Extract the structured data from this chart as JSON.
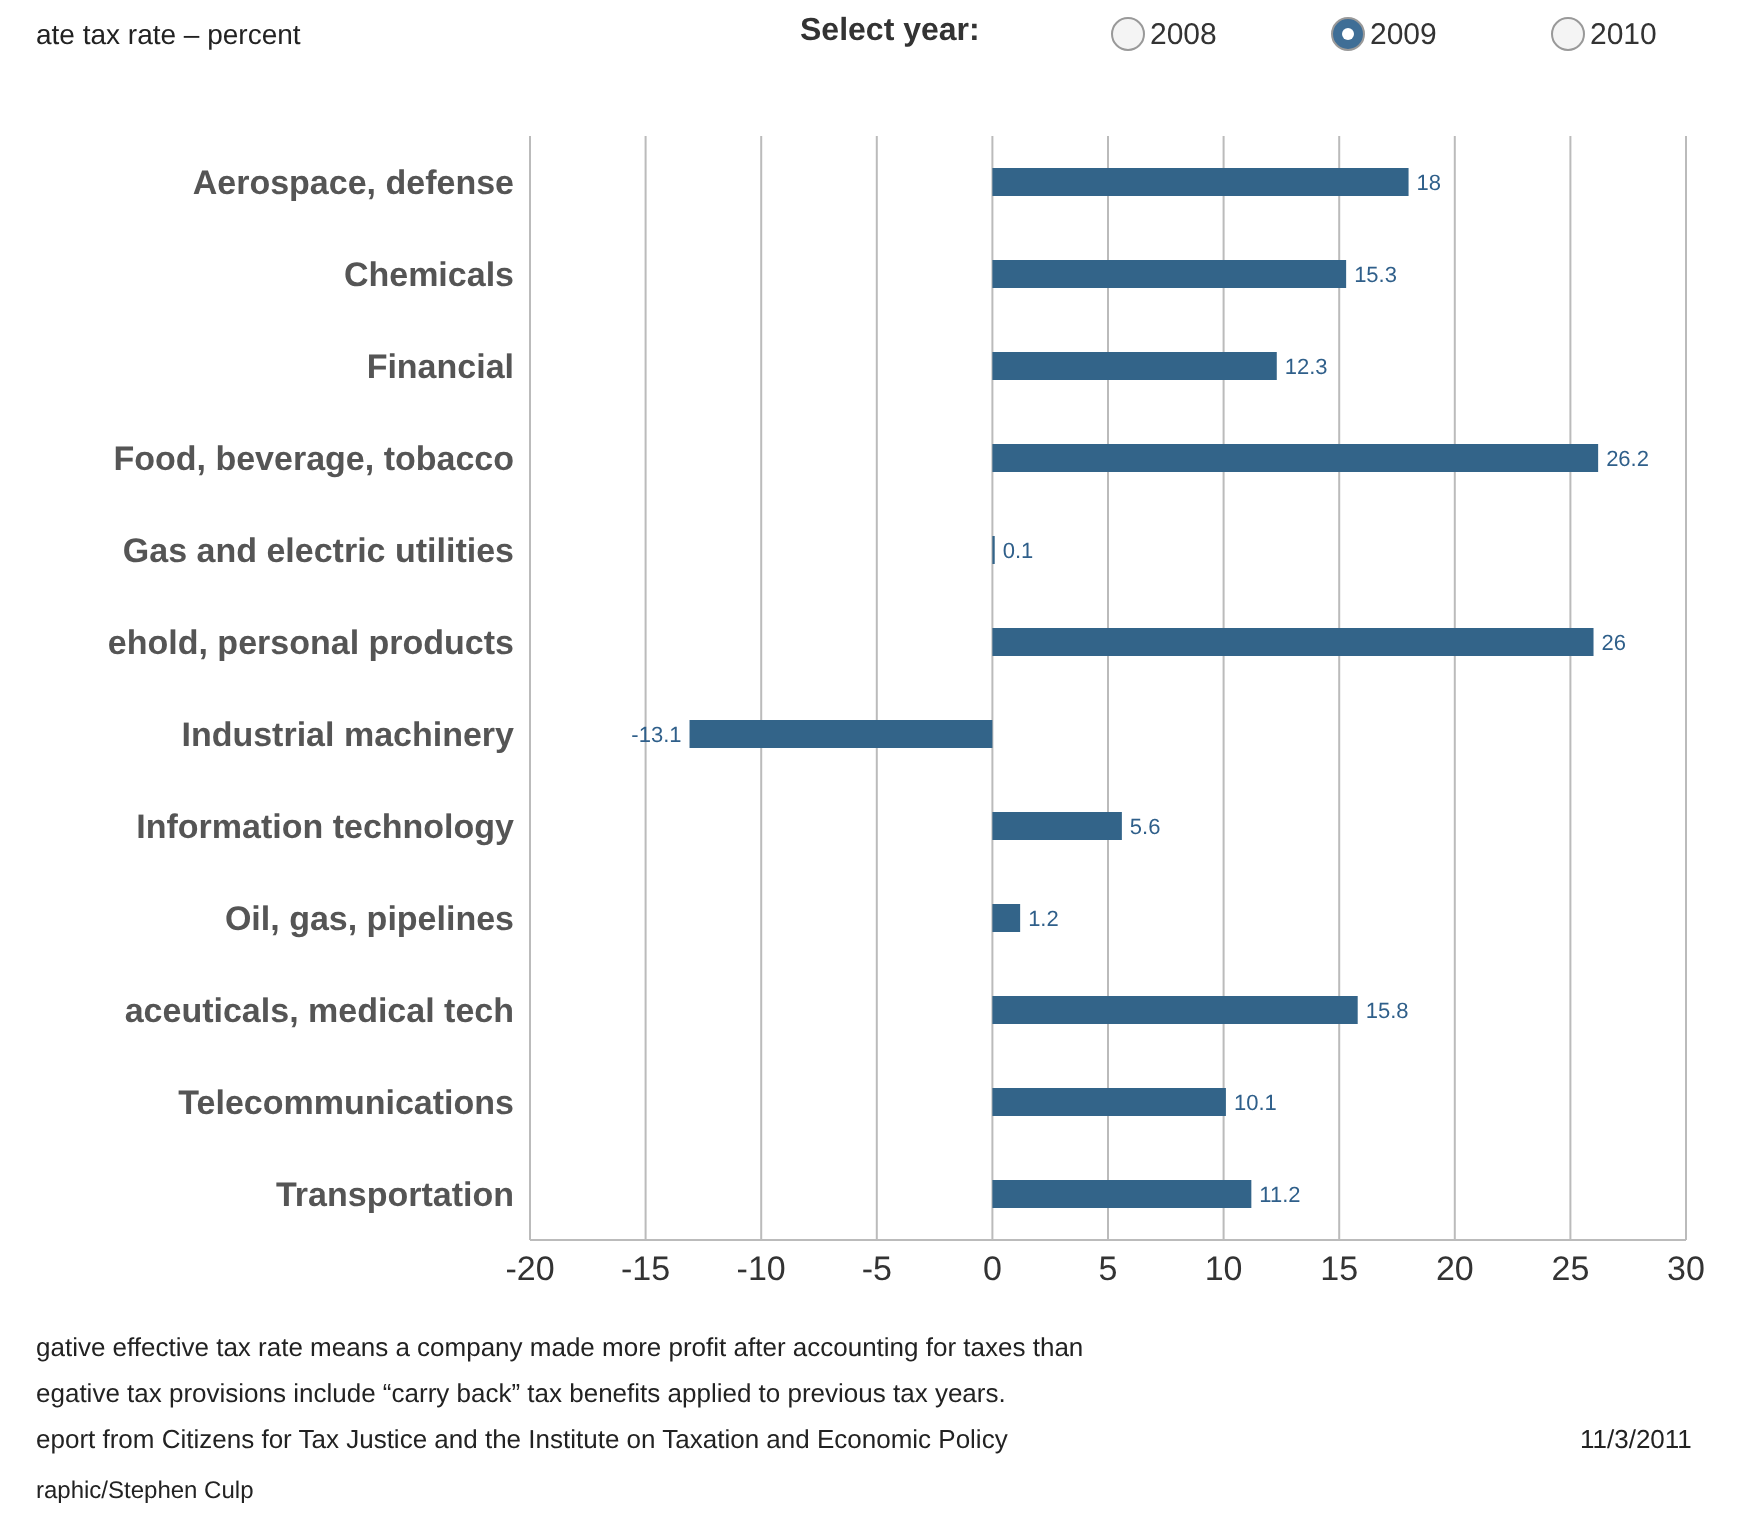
{
  "chart_data": {
    "type": "bar",
    "orientation": "horizontal",
    "title": "ate tax rate – percent",
    "categories": [
      "Aerospace, defense",
      "Chemicals",
      "Financial",
      "Food, beverage, tobacco",
      "Gas and electric utilities",
      "ehold, personal products",
      "Industrial machinery",
      "Information technology",
      "Oil, gas, pipelines",
      "aceuticals, medical tech",
      "Telecommunications",
      "Transportation"
    ],
    "values": [
      18,
      15.3,
      12.3,
      26.2,
      0.1,
      26,
      -13.1,
      5.6,
      1.2,
      15.8,
      10.1,
      11.2
    ],
    "color": "#336489",
    "data_labels": true,
    "grid": "x",
    "xlim": [
      -20,
      30
    ],
    "xticks": [
      -20,
      -15,
      -10,
      -5,
      0,
      5,
      10,
      15,
      20,
      25,
      30
    ],
    "annotations": [
      "Select year:",
      "2008",
      "2009",
      "2010",
      "gative effective tax rate means a company made more profit after accounting for taxes than",
      "egative tax provisions include “carry back” tax benefits applied to previous tax years.",
      "eport from Citizens for Tax Justice and the Institute on Taxation and Economic Policy",
      "11/3/2011",
      "raphic/Stephen Culp"
    ]
  }
}
